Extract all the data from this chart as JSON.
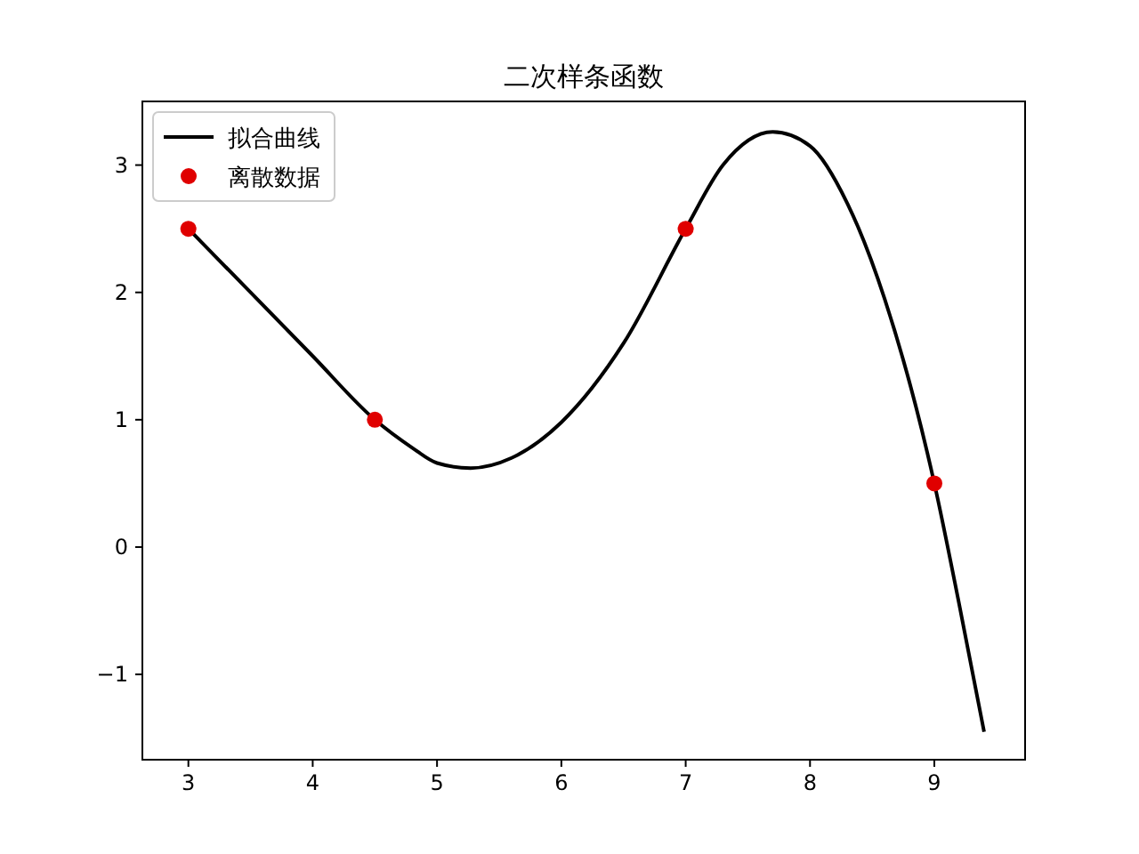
{
  "chart_data": {
    "type": "line",
    "title": "二次样条函数",
    "xlim": [
      2.63,
      9.73
    ],
    "ylim": [
      -1.67,
      3.5
    ],
    "xticks": [
      3,
      4,
      5,
      6,
      7,
      8,
      9
    ],
    "yticks": [
      -1,
      0,
      1,
      2,
      3
    ],
    "legend": "top left",
    "grid": false,
    "series": [
      {
        "name": "拟合曲线",
        "color": "#000000",
        "marker": "none",
        "line_style": "solid",
        "x": [
          3,
          3.5,
          4,
          4.5,
          4.8,
          5,
          5.27,
          5.6,
          6,
          6.5,
          7,
          7.3,
          7.7,
          8,
          8.3,
          8.6,
          9,
          9.2,
          9.4
        ],
        "values": [
          2.5,
          2.0,
          1.5,
          1.0,
          0.78,
          0.66,
          0.62,
          0.7,
          0.98,
          1.6,
          2.5,
          3.0,
          3.26,
          3.15,
          2.7,
          1.95,
          0.5,
          -0.45,
          -1.45
        ]
      },
      {
        "name": "离散数据",
        "type": "scatter",
        "color": "#e00000",
        "marker": "circle",
        "x": [
          3,
          4.5,
          7,
          9
        ],
        "values": [
          2.5,
          1,
          2.5,
          0.5
        ]
      }
    ]
  }
}
